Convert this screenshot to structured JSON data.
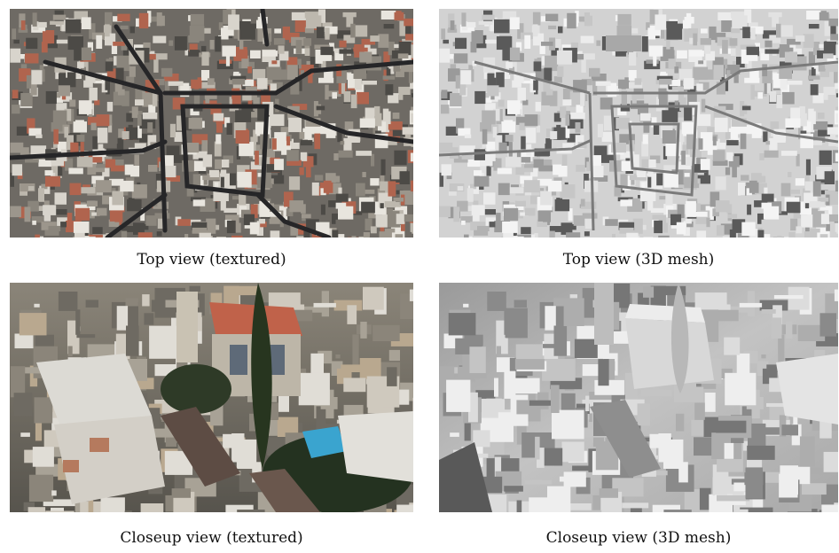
{
  "figure": {
    "panels": [
      {
        "caption": "Top view (textured)",
        "style": "textured",
        "view": "top"
      },
      {
        "caption": "Top view (3D mesh)",
        "style": "mesh",
        "view": "top"
      },
      {
        "caption": "Closeup view (textured)",
        "style": "textured",
        "view": "closeup"
      },
      {
        "caption": "Closeup view (3D mesh)",
        "style": "mesh",
        "view": "closeup"
      }
    ],
    "colors": {
      "textured_base": "#6e6a64",
      "textured_roof_light": "#d8d4cc",
      "textured_roof_red": "#b0644e",
      "textured_street": "#2a2a2c",
      "mesh_base": "#d2d2d2",
      "mesh_light": "#ececec",
      "mesh_shadow": "#5a5a5a"
    }
  }
}
